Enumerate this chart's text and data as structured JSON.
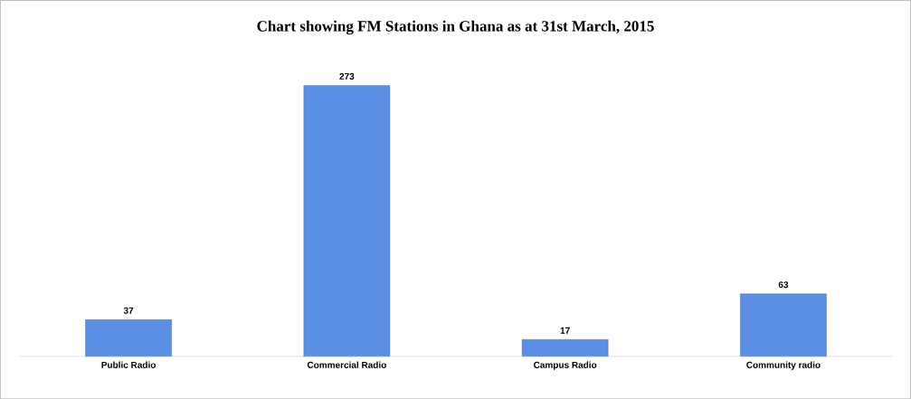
{
  "chart_data": {
    "type": "bar",
    "title": "Chart showing FM Stations in Ghana as at 31st March, 2015",
    "categories": [
      "Public Radio",
      "Commercial Radio",
      "Campus Radio",
      "Community radio"
    ],
    "values": [
      37,
      273,
      17,
      63
    ],
    "color": "#5b8fe3",
    "data_labels": true
  }
}
